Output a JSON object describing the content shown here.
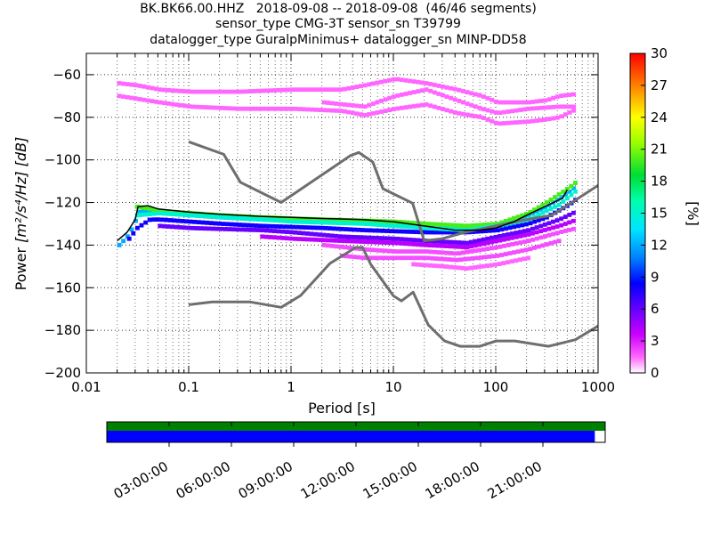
{
  "chart_data": [
    {
      "type": "heatmap",
      "title_lines": [
        "BK.BK66.00.HHZ   2018-09-08 -- 2018-09-08  (46/46 segments)",
        "sensor_type CMG-3T sensor_sn T39799",
        "datalogger_type GuralpMinimus+ datalogger_sn MINP-DD58"
      ],
      "xlabel": "Period [s]",
      "ylabel_prefix": "Power ",
      "ylabel_unit": "[m²/s⁴/Hz] [dB]",
      "xscale": "log",
      "xlim": [
        0.01,
        1000
      ],
      "ylim": [
        -200,
        -50
      ],
      "xticks": [
        {
          "value": 0.01,
          "label": "0.01"
        },
        {
          "value": 0.1,
          "label": "0.1"
        },
        {
          "value": 1,
          "label": "1"
        },
        {
          "value": 10,
          "label": "10"
        },
        {
          "value": 100,
          "label": "100"
        },
        {
          "value": 1000,
          "label": "1000"
        }
      ],
      "yticks": [
        {
          "value": -60,
          "label": "−60"
        },
        {
          "value": -80,
          "label": "−80"
        },
        {
          "value": -100,
          "label": "−100"
        },
        {
          "value": -120,
          "label": "−120"
        },
        {
          "value": -140,
          "label": "−140"
        },
        {
          "value": -160,
          "label": "−160"
        },
        {
          "value": -180,
          "label": "−180"
        },
        {
          "value": -200,
          "label": "−200"
        }
      ],
      "colorbar": {
        "label": "[%]",
        "range": [
          0,
          30
        ],
        "ticks": [
          {
            "value": 0,
            "label": "0"
          },
          {
            "value": 3,
            "label": "3"
          },
          {
            "value": 6,
            "label": "6"
          },
          {
            "value": 9,
            "label": "9"
          },
          {
            "value": 12,
            "label": "12"
          },
          {
            "value": 15,
            "label": "15"
          },
          {
            "value": 18,
            "label": "18"
          },
          {
            "value": 21,
            "label": "21"
          },
          {
            "value": 24,
            "label": "24"
          },
          {
            "value": 27,
            "label": "27"
          },
          {
            "value": 30,
            "label": "30"
          }
        ]
      },
      "noise_models": {
        "high": [
          [
            0.1,
            -91.5
          ],
          [
            0.22,
            -97.4
          ],
          [
            0.32,
            -110.5
          ],
          [
            0.8,
            -120
          ],
          [
            3.8,
            -98
          ],
          [
            4.6,
            -96.5
          ],
          [
            6.3,
            -101
          ],
          [
            7.9,
            -113.5
          ],
          [
            15.4,
            -120.3
          ],
          [
            20,
            -138
          ],
          [
            30,
            -137
          ],
          [
            50,
            -134
          ],
          [
            100,
            -131
          ],
          [
            200,
            -128
          ],
          [
            354.8,
            -126
          ],
          [
            1000,
            -112
          ]
        ],
        "low": [
          [
            0.1,
            -168
          ],
          [
            0.17,
            -166.7
          ],
          [
            0.4,
            -166.7
          ],
          [
            0.8,
            -169.2
          ],
          [
            1.24,
            -163.7
          ],
          [
            2.4,
            -148.6
          ],
          [
            4.3,
            -141.1
          ],
          [
            5,
            -141.1
          ],
          [
            6,
            -149
          ],
          [
            10,
            -163.8
          ],
          [
            12,
            -166.2
          ],
          [
            15.6,
            -162.1
          ],
          [
            21.9,
            -177.5
          ],
          [
            31.6,
            -185
          ],
          [
            45,
            -187.5
          ],
          [
            70,
            -187.5
          ],
          [
            101,
            -185
          ],
          [
            154,
            -185
          ],
          [
            328,
            -187.5
          ],
          [
            600,
            -184.4
          ],
          [
            1000,
            -178
          ]
        ]
      },
      "psd_mode": [
        [
          0.02,
          -138
        ],
        [
          0.025,
          -134
        ],
        [
          0.03,
          -128
        ],
        [
          0.032,
          -122
        ],
        [
          0.04,
          -121.5
        ],
        [
          0.05,
          -123
        ],
        [
          0.1,
          -124.5
        ],
        [
          0.2,
          -125.5
        ],
        [
          0.5,
          -126.5
        ],
        [
          1,
          -127
        ],
        [
          2,
          -127.5
        ],
        [
          5,
          -128
        ],
        [
          10,
          -129
        ],
        [
          20,
          -131
        ],
        [
          40,
          -133
        ],
        [
          70,
          -133
        ],
        [
          100,
          -132
        ],
        [
          150,
          -129
        ],
        [
          200,
          -126
        ],
        [
          300,
          -122
        ],
        [
          450,
          -118
        ],
        [
          500,
          -114
        ]
      ],
      "psd_bands": [
        {
          "pts": [
            [
              0.02,
              -140
            ],
            [
              0.022,
              -138
            ],
            [
              0.025,
              -135
            ],
            [
              0.028,
              -130
            ],
            [
              0.03,
              -127
            ],
            [
              0.032,
              -124
            ],
            [
              0.035,
              -124
            ],
            [
              0.04,
              -124
            ],
            [
              0.05,
              -125
            ],
            [
              0.1,
              -126
            ],
            [
              0.2,
              -127
            ],
            [
              0.5,
              -128
            ],
            [
              1,
              -128.5
            ],
            [
              2,
              -129
            ],
            [
              5,
              -129.5
            ],
            [
              10,
              -130
            ],
            [
              20,
              -131
            ],
            [
              40,
              -132
            ],
            [
              70,
              -132
            ],
            [
              100,
              -131
            ],
            [
              150,
              -129
            ],
            [
              200,
              -126
            ],
            [
              300,
              -122
            ],
            [
              400,
              -118
            ],
            [
              500,
              -115
            ],
            [
              600,
              -112
            ]
          ],
          "pct": 12
        },
        {
          "pts": [
            [
              0.03,
              -122
            ],
            [
              0.04,
              -123
            ],
            [
              0.05,
              -124
            ],
            [
              0.1,
              -125
            ],
            [
              0.2,
              -126
            ],
            [
              0.5,
              -127
            ],
            [
              1,
              -127.5
            ],
            [
              2,
              -128
            ],
            [
              5,
              -128.5
            ],
            [
              10,
              -129
            ],
            [
              20,
              -130
            ],
            [
              50,
              -131
            ],
            [
              100,
              -130
            ],
            [
              200,
              -125
            ],
            [
              300,
              -120
            ],
            [
              500,
              -113
            ],
            [
              600,
              -110
            ]
          ],
          "pct": 20
        },
        {
          "pts": [
            [
              0.025,
              -137
            ],
            [
              0.03,
              -132
            ],
            [
              0.04,
              -128
            ],
            [
              0.05,
              -128
            ],
            [
              0.1,
              -129
            ],
            [
              0.2,
              -130
            ],
            [
              0.5,
              -131
            ],
            [
              1,
              -131.5
            ],
            [
              2,
              -132
            ],
            [
              5,
              -133
            ],
            [
              10,
              -133.5
            ],
            [
              20,
              -134
            ],
            [
              50,
              -134
            ],
            [
              100,
              -133
            ],
            [
              200,
              -130
            ],
            [
              300,
              -127
            ],
            [
              500,
              -121
            ],
            [
              600,
              -118
            ]
          ],
          "pct": 8
        },
        {
          "pts": [
            [
              0.03,
              -126
            ],
            [
              0.05,
              -125
            ],
            [
              0.1,
              -126
            ],
            [
              0.5,
              -128
            ],
            [
              1,
              -129
            ],
            [
              5,
              -130
            ],
            [
              10,
              -131
            ],
            [
              20,
              -132
            ],
            [
              50,
              -133
            ],
            [
              100,
              -131
            ],
            [
              200,
              -128
            ],
            [
              400,
              -121
            ],
            [
              600,
              -114
            ]
          ],
          "pct": 15
        },
        {
          "pts": [
            [
              0.05,
              -131
            ],
            [
              0.1,
              -132
            ],
            [
              0.5,
              -133
            ],
            [
              1,
              -134
            ],
            [
              3,
              -136
            ],
            [
              10,
              -137
            ],
            [
              20,
              -138
            ],
            [
              50,
              -139
            ],
            [
              100,
              -136
            ],
            [
              200,
              -133
            ],
            [
              400,
              -128
            ],
            [
              600,
              -124
            ]
          ],
          "pct": 6
        },
        {
          "pts": [
            [
              0.5,
              -136
            ],
            [
              1,
              -137
            ],
            [
              3,
              -138
            ],
            [
              10,
              -139
            ],
            [
              20,
              -140
            ],
            [
              50,
              -141
            ],
            [
              100,
              -138
            ],
            [
              200,
              -135
            ],
            [
              400,
              -131
            ],
            [
              600,
              -128
            ]
          ],
          "pct": 4
        },
        {
          "pts": [
            [
              2,
              -140
            ],
            [
              5,
              -142
            ],
            [
              10,
              -143
            ],
            [
              20,
              -143
            ],
            [
              40,
              -144
            ],
            [
              100,
              -141
            ],
            [
              200,
              -138
            ],
            [
              400,
              -134
            ],
            [
              600,
              -132
            ]
          ],
          "pct": 2
        },
        {
          "pts": [
            [
              3,
              -145
            ],
            [
              5,
              -146
            ],
            [
              10,
              -146
            ],
            [
              20,
              -146
            ],
            [
              40,
              -147
            ],
            [
              100,
              -145
            ],
            [
              200,
              -142
            ],
            [
              400,
              -138
            ]
          ],
          "pct": 2
        },
        {
          "pts": [
            [
              15,
              -149
            ],
            [
              30,
              -150
            ],
            [
              50,
              -151
            ],
            [
              100,
              -149
            ],
            [
              200,
              -146
            ]
          ],
          "pct": 1.5
        },
        {
          "pts": [
            [
              0.02,
              -64
            ],
            [
              0.03,
              -65
            ],
            [
              0.05,
              -67
            ],
            [
              0.1,
              -68
            ],
            [
              0.3,
              -68
            ],
            [
              1,
              -67
            ],
            [
              3,
              -67
            ],
            [
              5,
              -65
            ],
            [
              8,
              -63
            ],
            [
              10,
              -62
            ],
            [
              20,
              -64
            ],
            [
              40,
              -67
            ],
            [
              70,
              -70
            ],
            [
              100,
              -73
            ],
            [
              200,
              -73
            ],
            [
              300,
              -72
            ],
            [
              400,
              -70
            ],
            [
              600,
              -69
            ]
          ],
          "pct": 1.5
        },
        {
          "pts": [
            [
              0.02,
              -70
            ],
            [
              0.05,
              -73
            ],
            [
              0.1,
              -75
            ],
            [
              0.3,
              -76
            ],
            [
              1,
              -76
            ],
            [
              3,
              -77
            ],
            [
              5,
              -79
            ],
            [
              10,
              -76
            ],
            [
              20,
              -74
            ],
            [
              40,
              -78
            ],
            [
              70,
              -80
            ],
            [
              100,
              -83
            ],
            [
              200,
              -82
            ],
            [
              300,
              -81
            ],
            [
              400,
              -80
            ],
            [
              600,
              -76
            ]
          ],
          "pct": 1.5
        },
        {
          "pts": [
            [
              2,
              -73
            ],
            [
              5,
              -75
            ],
            [
              10,
              -70
            ],
            [
              20,
              -67
            ],
            [
              40,
              -72
            ],
            [
              70,
              -76
            ],
            [
              100,
              -78
            ],
            [
              200,
              -76
            ],
            [
              400,
              -75
            ],
            [
              600,
              -75
            ]
          ],
          "pct": 1.5
        }
      ],
      "time_axis": {
        "labels": [
          "03:00:00",
          "06:00:00",
          "09:00:00",
          "12:00:00",
          "15:00:00",
          "18:00:00",
          "21:00:00"
        ],
        "label_hours": [
          3,
          6,
          9,
          12,
          15,
          18,
          21
        ],
        "hours_total": 24,
        "data_coverage": [
          [
            0,
            24
          ]
        ],
        "gap_coverage_end_hour": 23.5,
        "data_color": "#008000",
        "gap_color": "#0000ff"
      },
      "colors": {
        "model_line": "#6e6e6e",
        "mode_line": "#000000",
        "grid": "#000000"
      }
    }
  ]
}
